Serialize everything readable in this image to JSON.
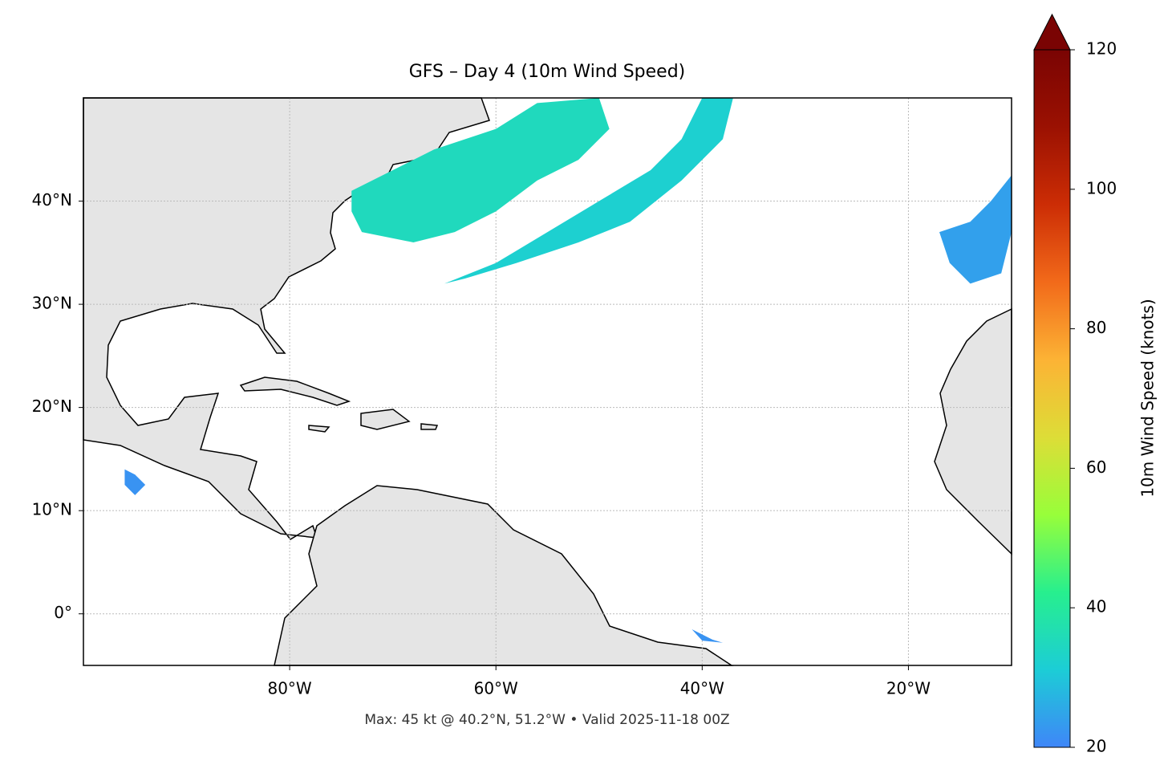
{
  "chart_data": {
    "type": "map",
    "title": "GFS – Day 4 (10m Wind Speed)",
    "footer": "Max: 45 kt @ 40.2°N, 51.2°W • Valid 2025-11-18 00Z",
    "xlim": [
      -100,
      -10
    ],
    "ylim": [
      -5,
      50
    ],
    "xticks": [
      {
        "value": -80,
        "label": "80°W"
      },
      {
        "value": -60,
        "label": "60°W"
      },
      {
        "value": -40,
        "label": "40°W"
      },
      {
        "value": -20,
        "label": "20°W"
      }
    ],
    "yticks": [
      {
        "value": 0,
        "label": "0°"
      },
      {
        "value": 10,
        "label": "10°N"
      },
      {
        "value": 20,
        "label": "20°N"
      },
      {
        "value": 30,
        "label": "30°N"
      },
      {
        "value": 40,
        "label": "40°N"
      }
    ],
    "grid": true,
    "colorbar": {
      "label": "10m Wind Speed (knots)",
      "lim": [
        20,
        120
      ],
      "ticks": [
        20,
        40,
        60,
        80,
        100,
        120
      ],
      "colors": [
        "#3f86f8",
        "#1ccdd6",
        "#27ef8e",
        "#98fe3a",
        "#dddd37",
        "#fcb335",
        "#f26a1a",
        "#cc2d05",
        "#9b1102",
        "#7a0403"
      ]
    },
    "wind_areas": [
      {
        "speed": 35,
        "lon": [
          -74,
          -70,
          -66,
          -60,
          -56,
          -50,
          -49,
          -52,
          -56,
          -60,
          -64,
          -68,
          -73,
          -74
        ],
        "lat": [
          41,
          43,
          45,
          47,
          49.5,
          50,
          47,
          44,
          42,
          39,
          37,
          36,
          37,
          39
        ]
      },
      {
        "speed": 32,
        "lon": [
          -65,
          -60,
          -55,
          -50,
          -45,
          -42,
          -40,
          -37,
          -38,
          -42,
          -47,
          -52,
          -58,
          -63
        ],
        "lat": [
          32,
          34,
          37,
          40,
          43,
          46,
          50,
          50,
          46,
          42,
          38,
          36,
          34,
          32.5
        ]
      },
      {
        "speed": 24,
        "lon": [
          -14,
          -11,
          -10,
          -10,
          -12,
          -14,
          -17,
          -16
        ],
        "lat": [
          32,
          33,
          37,
          42.5,
          40,
          38,
          37,
          34
        ]
      },
      {
        "speed": 22,
        "lon": [
          -96,
          -95,
          -94,
          -95,
          -96
        ],
        "lat": [
          14,
          13.5,
          12.5,
          11.5,
          12.5
        ]
      },
      {
        "speed": 22,
        "lon": [
          -41,
          -39,
          -38,
          -40
        ],
        "lat": [
          -1.5,
          -2.5,
          -2.8,
          -2.6
        ]
      }
    ]
  }
}
